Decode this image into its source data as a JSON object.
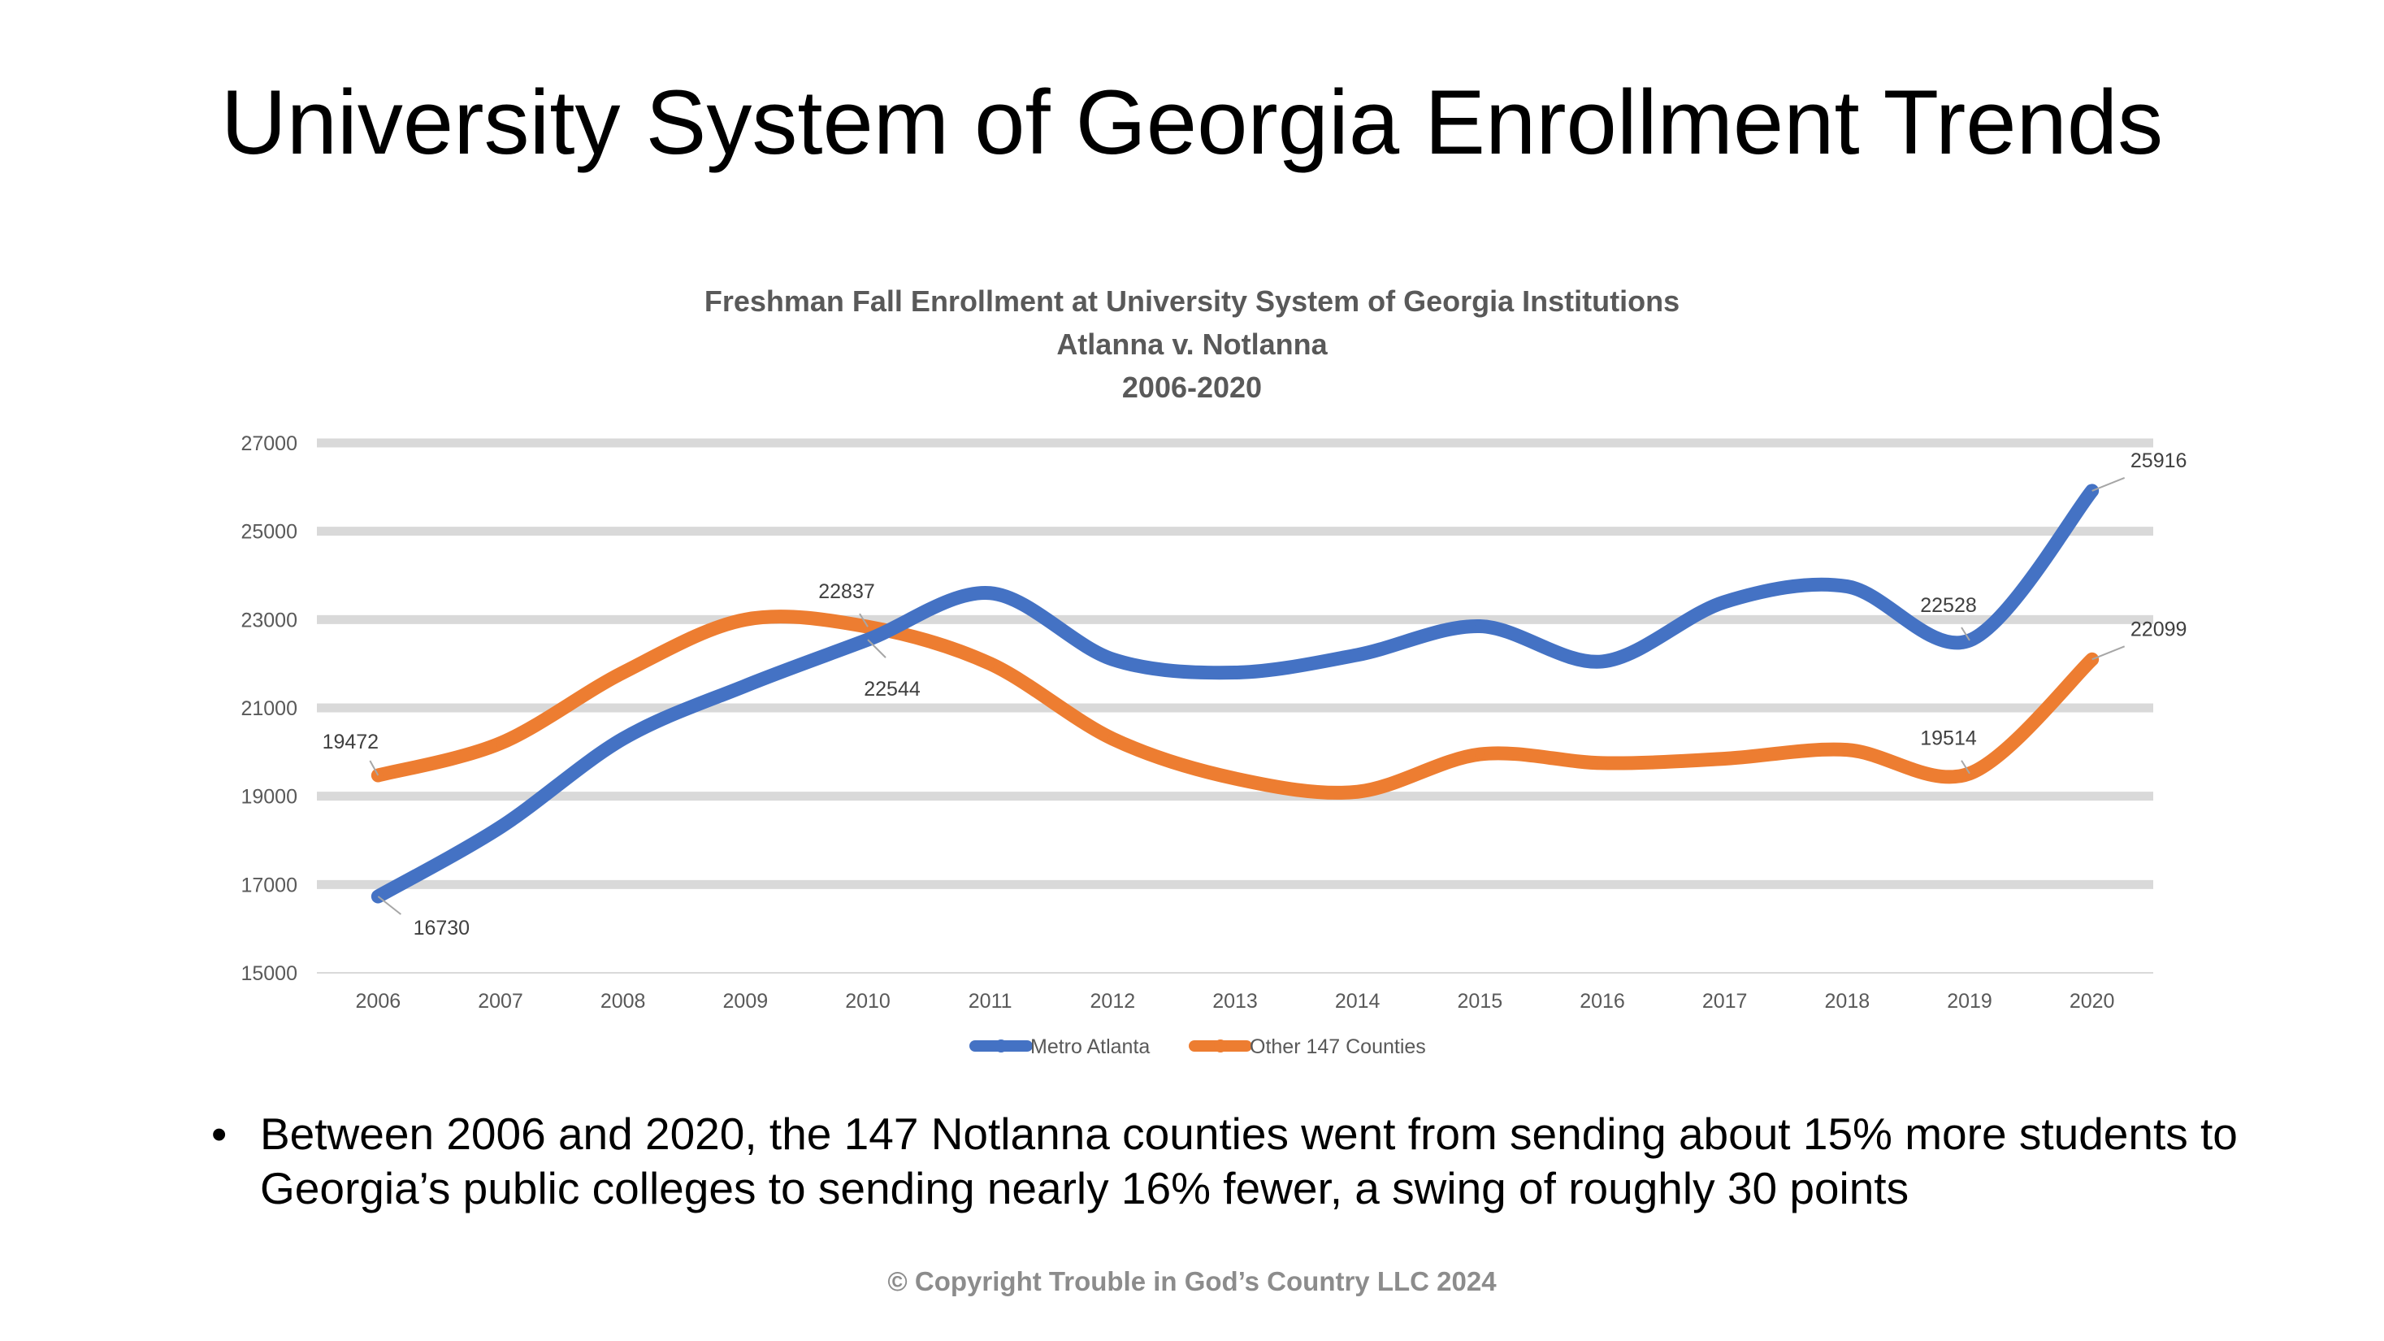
{
  "slide": {
    "title": "University System of Georgia Enrollment Trends",
    "bullet": "Between 2006 and 2020, the 147 Notlanna counties went from sending about 15% more students to Georgia’s public colleges to sending nearly 16% fewer, a swing of roughly 30 points",
    "bullet_marker": "•",
    "copyright": "© Copyright Trouble in God’s Country LLC 2024"
  },
  "chart_data": {
    "type": "line",
    "title_lines": [
      "Freshman Fall Enrollment at University System of Georgia Institutions",
      "Atlanna v. Notlanna",
      "2006-2020"
    ],
    "categories": [
      "2006",
      "2007",
      "2008",
      "2009",
      "2010",
      "2011",
      "2012",
      "2013",
      "2014",
      "2015",
      "2016",
      "2017",
      "2018",
      "2019",
      "2020"
    ],
    "ylim": [
      15000,
      27000
    ],
    "yticks": [
      15000,
      17000,
      19000,
      21000,
      23000,
      25000,
      27000
    ],
    "ytick_labels": [
      "15000",
      "17000",
      "19000",
      "21000",
      "23000",
      "25000",
      "27000"
    ],
    "grid": true,
    "legend": "bottom",
    "series": [
      {
        "name": "Metro Atlanta",
        "color": "#4472c4",
        "values": [
          16730,
          18300,
          20300,
          21500,
          22544,
          23600,
          22100,
          21800,
          22200,
          22850,
          22050,
          23400,
          23750,
          22528,
          25916
        ],
        "labels": [
          {
            "index": 0,
            "text": "16730",
            "position": "below-right"
          },
          {
            "index": 4,
            "text": "22544",
            "position": "below"
          },
          {
            "index": 13,
            "text": "22528",
            "position": "above"
          },
          {
            "index": 14,
            "text": "25916",
            "position": "above-right"
          }
        ]
      },
      {
        "name": "Other 147 Counties",
        "color": "#ed7d31",
        "values": [
          19472,
          20200,
          21800,
          23000,
          22837,
          22000,
          20300,
          19400,
          19100,
          19950,
          19750,
          19850,
          20050,
          19514,
          22099
        ],
        "labels": [
          {
            "index": 0,
            "text": "19472",
            "position": "above-left"
          },
          {
            "index": 4,
            "text": "22837",
            "position": "above"
          },
          {
            "index": 13,
            "text": "19514",
            "position": "above"
          },
          {
            "index": 14,
            "text": "22099",
            "position": "above-right"
          }
        ]
      }
    ]
  }
}
